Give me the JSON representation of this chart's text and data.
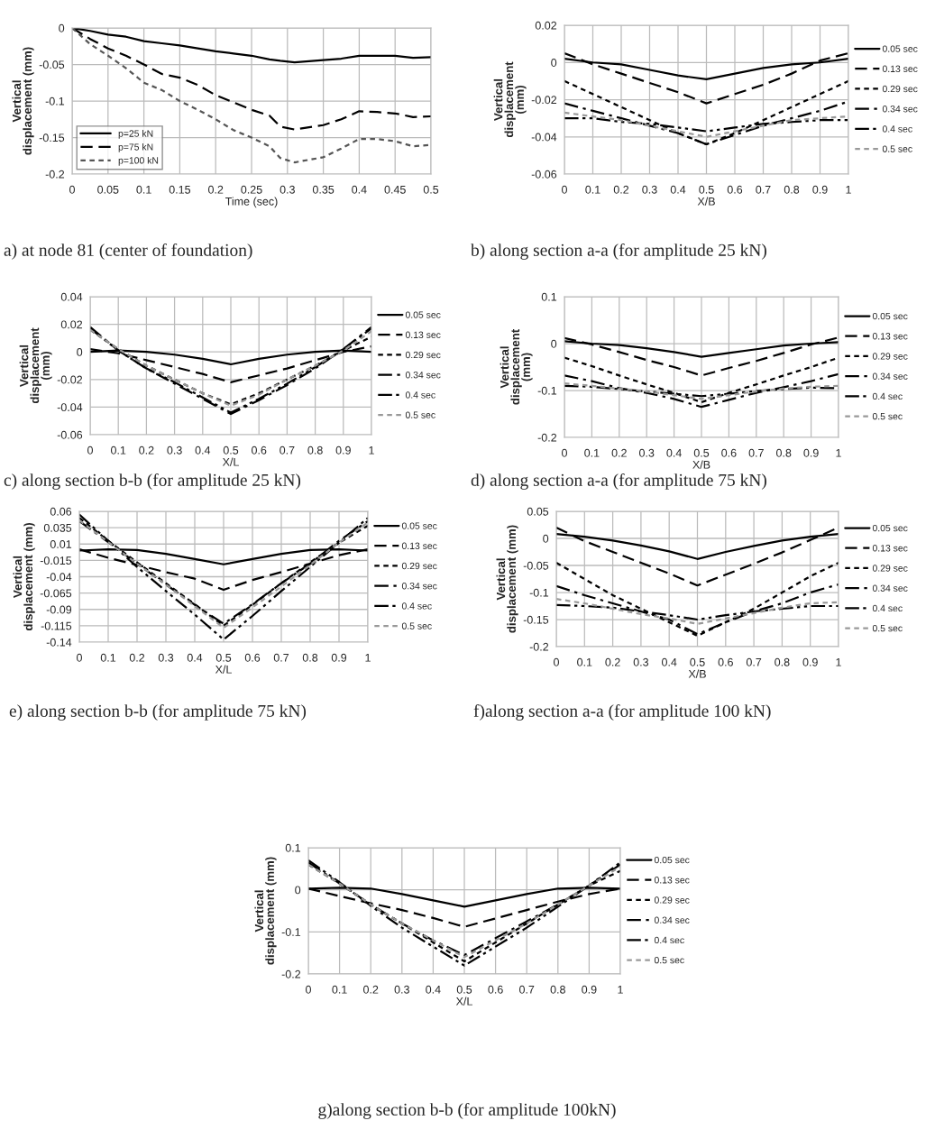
{
  "chart_data": [
    {
      "type": "line",
      "title": "a) at node 81 (center of foundation)",
      "xlabel": "Time (sec)",
      "ylabel": "Vertical\ndisplacement (mm)",
      "xlim": [
        0,
        0.5
      ],
      "xticks": [
        0,
        0.05,
        0.1,
        0.15,
        0.2,
        0.25,
        0.3,
        0.35,
        0.4,
        0.45,
        0.5
      ],
      "ylim": [
        -0.2,
        0
      ],
      "yticks": [
        0,
        -0.05,
        -0.1,
        -0.15,
        -0.2
      ],
      "grid": true,
      "legend": "bottom left",
      "x": [
        0,
        0.025,
        0.05,
        0.075,
        0.1,
        0.125,
        0.15,
        0.175,
        0.2,
        0.225,
        0.25,
        0.275,
        0.29,
        0.31,
        0.35,
        0.375,
        0.4,
        0.425,
        0.45,
        0.475,
        0.5
      ],
      "series": [
        {
          "name": "p=25 kN",
          "color": "#000000",
          "line_style": "solid",
          "values": [
            0,
            -0.004,
            -0.009,
            -0.012,
            -0.018,
            -0.021,
            -0.024,
            -0.028,
            -0.032,
            -0.035,
            -0.038,
            -0.043,
            -0.045,
            -0.047,
            -0.044,
            -0.042,
            -0.038,
            -0.038,
            -0.038,
            -0.041,
            -0.04
          ]
        },
        {
          "name": "p=75 kN",
          "color": "#000000",
          "line_style": "dashed",
          "values": [
            0,
            -0.015,
            -0.028,
            -0.038,
            -0.05,
            -0.063,
            -0.068,
            -0.078,
            -0.092,
            -0.102,
            -0.112,
            -0.12,
            -0.135,
            -0.139,
            -0.133,
            -0.125,
            -0.114,
            -0.115,
            -0.117,
            -0.122,
            -0.121
          ]
        },
        {
          "name": "p=100 kN",
          "color": "#555555",
          "line_style": "dotted",
          "values": [
            0,
            -0.022,
            -0.038,
            -0.055,
            -0.075,
            -0.085,
            -0.1,
            -0.112,
            -0.125,
            -0.14,
            -0.15,
            -0.162,
            -0.178,
            -0.184,
            -0.177,
            -0.165,
            -0.152,
            -0.152,
            -0.155,
            -0.162,
            -0.16
          ]
        }
      ]
    },
    {
      "type": "line",
      "title": "b) along section a-a (for amplitude 25 kN)",
      "xlabel": "X/B",
      "ylabel": "Vertical\ndisplacement\n(mm)",
      "xlim": [
        0,
        1
      ],
      "xticks": [
        0,
        0.1,
        0.2,
        0.3,
        0.4,
        0.5,
        0.6,
        0.7,
        0.8,
        0.9,
        1
      ],
      "ylim": [
        -0.06,
        0.02
      ],
      "yticks": [
        0.02,
        0,
        -0.02,
        -0.04,
        -0.06
      ],
      "grid": true,
      "legend": "right",
      "x": [
        0,
        0.1,
        0.2,
        0.3,
        0.4,
        0.5,
        0.6,
        0.7,
        0.8,
        0.9,
        1
      ],
      "series": [
        {
          "name": "0.05 sec",
          "color": "#000000",
          "line_style": "solid",
          "values": [
            0.002,
            0,
            -0.001,
            -0.004,
            -0.007,
            -0.009,
            -0.006,
            -0.003,
            -0.001,
            0,
            0.002
          ]
        },
        {
          "name": "0.13 sec",
          "color": "#000000",
          "line_style": "dashed",
          "values": [
            0.005,
            -0.001,
            -0.006,
            -0.011,
            -0.016,
            -0.022,
            -0.017,
            -0.012,
            -0.006,
            0.001,
            0.005
          ]
        },
        {
          "name": "0.29 sec",
          "color": "#000000",
          "line_style": "dotted",
          "values": [
            -0.01,
            -0.017,
            -0.024,
            -0.031,
            -0.038,
            -0.044,
            -0.038,
            -0.031,
            -0.024,
            -0.017,
            -0.01
          ]
        },
        {
          "name": "0.34 sec",
          "color": "#000000",
          "line_style": "dashdot",
          "values": [
            -0.022,
            -0.026,
            -0.03,
            -0.034,
            -0.038,
            -0.044,
            -0.039,
            -0.034,
            -0.03,
            -0.026,
            -0.021
          ]
        },
        {
          "name": "0.4 sec",
          "color": "#000000",
          "line_style": "dashdotdot",
          "values": [
            -0.03,
            -0.03,
            -0.032,
            -0.033,
            -0.035,
            -0.037,
            -0.035,
            -0.033,
            -0.032,
            -0.031,
            -0.031
          ]
        },
        {
          "name": "0.5 sec",
          "color": "#999999",
          "line_style": "dotted",
          "values": [
            -0.027,
            -0.029,
            -0.031,
            -0.034,
            -0.037,
            -0.04,
            -0.037,
            -0.034,
            -0.031,
            -0.03,
            -0.029
          ]
        }
      ]
    },
    {
      "type": "line",
      "title": "c) along section b-b (for amplitude 25 kN)",
      "xlabel": "X/L",
      "ylabel": "Vertical\ndisplacement\n(mm)",
      "xlim": [
        0,
        1
      ],
      "xticks": [
        0,
        0.1,
        0.2,
        0.3,
        0.4,
        0.5,
        0.6,
        0.7,
        0.8,
        0.9,
        1
      ],
      "ylim": [
        -0.06,
        0.04
      ],
      "yticks": [
        0.04,
        0.02,
        0,
        -0.02,
        -0.04,
        -0.06
      ],
      "grid": true,
      "legend": "right",
      "x": [
        0,
        0.1,
        0.2,
        0.3,
        0.4,
        0.5,
        0.6,
        0.7,
        0.8,
        0.9,
        1
      ],
      "series": [
        {
          "name": "0.05 sec",
          "color": "#000000",
          "line_style": "solid",
          "values": [
            0,
            0.001,
            0,
            -0.002,
            -0.005,
            -0.009,
            -0.005,
            -0.002,
            0,
            0.001,
            0
          ]
        },
        {
          "name": "0.13 sec",
          "color": "#000000",
          "line_style": "dashed",
          "values": [
            0.002,
            -0.001,
            -0.006,
            -0.011,
            -0.016,
            -0.022,
            -0.017,
            -0.012,
            -0.006,
            0,
            0.004
          ]
        },
        {
          "name": "0.29 sec",
          "color": "#000000",
          "line_style": "dotted",
          "values": [
            0.016,
            0.002,
            -0.01,
            -0.02,
            -0.03,
            -0.038,
            -0.03,
            -0.02,
            -0.01,
            0.001,
            0.011
          ]
        },
        {
          "name": "0.34 sec",
          "color": "#000000",
          "line_style": "dashdot",
          "values": [
            0.018,
            0.001,
            -0.012,
            -0.023,
            -0.034,
            -0.045,
            -0.035,
            -0.024,
            -0.012,
            0.002,
            0.018
          ]
        },
        {
          "name": "0.4 sec",
          "color": "#000000",
          "line_style": "dashdotdot",
          "values": [
            0.017,
            0.001,
            -0.012,
            -0.022,
            -0.033,
            -0.044,
            -0.034,
            -0.023,
            -0.011,
            0.002,
            0.017
          ]
        },
        {
          "name": "0.5 sec",
          "color": "#999999",
          "line_style": "dotted",
          "values": [
            0.016,
            0.002,
            -0.01,
            -0.02,
            -0.03,
            -0.039,
            -0.031,
            -0.02,
            -0.01,
            0.001,
            0.015
          ]
        }
      ]
    },
    {
      "type": "line",
      "title": "d) along section a-a (for amplitude 75 kN)",
      "xlabel": "X/B",
      "ylabel": "Vertical\ndisplacement\n(mm)",
      "xlim": [
        0,
        1
      ],
      "xticks": [
        0,
        0.1,
        0.2,
        0.3,
        0.4,
        0.5,
        0.6,
        0.7,
        0.8,
        0.9,
        1
      ],
      "ylim": [
        -0.2,
        0.1
      ],
      "yticks": [
        0.1,
        0,
        -0.1,
        -0.2
      ],
      "grid": true,
      "legend": "right",
      "x": [
        0,
        0.1,
        0.2,
        0.3,
        0.4,
        0.5,
        0.6,
        0.7,
        0.8,
        0.9,
        1
      ],
      "series": [
        {
          "name": "0.05 sec",
          "color": "#000000",
          "line_style": "solid",
          "values": [
            0.005,
            0,
            -0.003,
            -0.01,
            -0.018,
            -0.028,
            -0.02,
            -0.012,
            -0.004,
            0,
            0.003
          ]
        },
        {
          "name": "0.13 sec",
          "color": "#000000",
          "line_style": "dashed",
          "values": [
            0.012,
            -0.002,
            -0.018,
            -0.035,
            -0.05,
            -0.068,
            -0.052,
            -0.037,
            -0.02,
            -0.002,
            0.013
          ]
        },
        {
          "name": "0.29 sec",
          "color": "#000000",
          "line_style": "dotted",
          "values": [
            -0.03,
            -0.048,
            -0.068,
            -0.087,
            -0.105,
            -0.125,
            -0.105,
            -0.087,
            -0.068,
            -0.05,
            -0.03
          ]
        },
        {
          "name": "0.34 sec",
          "color": "#000000",
          "line_style": "dashdot",
          "values": [
            -0.068,
            -0.08,
            -0.095,
            -0.105,
            -0.118,
            -0.135,
            -0.12,
            -0.105,
            -0.093,
            -0.08,
            -0.065
          ]
        },
        {
          "name": "0.4 sec",
          "color": "#000000",
          "line_style": "dashdotdot",
          "values": [
            -0.09,
            -0.092,
            -0.097,
            -0.102,
            -0.107,
            -0.112,
            -0.107,
            -0.101,
            -0.097,
            -0.094,
            -0.095
          ]
        },
        {
          "name": "0.5 sec",
          "color": "#999999",
          "line_style": "dotted",
          "values": [
            -0.085,
            -0.09,
            -0.096,
            -0.102,
            -0.11,
            -0.118,
            -0.11,
            -0.102,
            -0.096,
            -0.092,
            -0.09
          ]
        }
      ]
    },
    {
      "type": "line",
      "title": "e) along section b-b (for amplitude 75 kN)",
      "xlabel": "X/L",
      "ylabel": "Vertical\ndisplacement (mm)",
      "xlim": [
        0,
        1
      ],
      "xticks": [
        0,
        0.1,
        0.2,
        0.3,
        0.4,
        0.5,
        0.6,
        0.7,
        0.8,
        0.9,
        1
      ],
      "ylim": [
        -0.14,
        0.06
      ],
      "yticks": [
        0.06,
        0.035,
        0.01,
        -0.015,
        -0.04,
        -0.065,
        -0.09,
        -0.115,
        -0.14
      ],
      "grid": true,
      "legend": "right",
      "x": [
        0,
        0.1,
        0.2,
        0.3,
        0.4,
        0.5,
        0.6,
        0.7,
        0.8,
        0.9,
        1
      ],
      "series": [
        {
          "name": "0.05 sec",
          "color": "#000000",
          "line_style": "solid",
          "values": [
            0,
            0.002,
            0.001,
            -0.005,
            -0.013,
            -0.021,
            -0.013,
            -0.005,
            0.001,
            0.002,
            0
          ]
        },
        {
          "name": "0.13 sec",
          "color": "#000000",
          "line_style": "dashed",
          "values": [
            0.002,
            -0.011,
            -0.022,
            -0.033,
            -0.043,
            -0.06,
            -0.045,
            -0.033,
            -0.02,
            -0.007,
            0.002
          ]
        },
        {
          "name": "0.29 sec",
          "color": "#000000",
          "line_style": "dotted",
          "values": [
            0.05,
            0.015,
            -0.018,
            -0.05,
            -0.082,
            -0.115,
            -0.083,
            -0.05,
            -0.018,
            0.012,
            0.038
          ]
        },
        {
          "name": "0.34 sec",
          "color": "#000000",
          "line_style": "dashdot",
          "values": [
            0.045,
            0.013,
            -0.02,
            -0.052,
            -0.083,
            -0.112,
            -0.082,
            -0.05,
            -0.02,
            0.015,
            0.045
          ]
        },
        {
          "name": "0.4 sec",
          "color": "#000000",
          "line_style": "dashdotdot",
          "values": [
            0.055,
            0.015,
            -0.025,
            -0.062,
            -0.098,
            -0.136,
            -0.1,
            -0.062,
            -0.025,
            0.012,
            0.05
          ]
        },
        {
          "name": "0.5 sec",
          "color": "#999999",
          "line_style": "dotted",
          "values": [
            0.046,
            0.013,
            -0.02,
            -0.052,
            -0.085,
            -0.118,
            -0.087,
            -0.055,
            -0.022,
            0.012,
            0.043
          ]
        }
      ]
    },
    {
      "type": "line",
      "title": "f)along section a-a (for amplitude 100 kN)",
      "xlabel": "X/B",
      "ylabel": "Vertical\ndisplacement (mm)",
      "xlim": [
        0,
        1
      ],
      "xticks": [
        0,
        0.1,
        0.2,
        0.3,
        0.4,
        0.5,
        0.6,
        0.7,
        0.8,
        0.9,
        1
      ],
      "ylim": [
        -0.2,
        0.05
      ],
      "yticks": [
        0.05,
        0,
        -0.05,
        -0.1,
        -0.15,
        -0.2
      ],
      "grid": true,
      "legend": "right",
      "x": [
        0,
        0.1,
        0.2,
        0.3,
        0.4,
        0.5,
        0.6,
        0.7,
        0.8,
        0.9,
        1
      ],
      "series": [
        {
          "name": "0.05 sec",
          "color": "#000000",
          "line_style": "solid",
          "values": [
            0.008,
            0.003,
            -0.004,
            -0.013,
            -0.024,
            -0.038,
            -0.025,
            -0.014,
            -0.004,
            0.003,
            0.008
          ]
        },
        {
          "name": "0.13 sec",
          "color": "#000000",
          "line_style": "dashed",
          "values": [
            0.02,
            -0.005,
            -0.025,
            -0.045,
            -0.065,
            -0.087,
            -0.067,
            -0.047,
            -0.026,
            -0.003,
            0.02
          ]
        },
        {
          "name": "0.29 sec",
          "color": "#000000",
          "line_style": "dotted",
          "values": [
            -0.045,
            -0.075,
            -0.105,
            -0.13,
            -0.155,
            -0.18,
            -0.155,
            -0.13,
            -0.1,
            -0.07,
            -0.045
          ]
        },
        {
          "name": "0.34 sec",
          "color": "#000000",
          "line_style": "dashdot",
          "values": [
            -0.088,
            -0.105,
            -0.12,
            -0.135,
            -0.15,
            -0.177,
            -0.155,
            -0.135,
            -0.12,
            -0.1,
            -0.085
          ]
        },
        {
          "name": "0.4 sec",
          "color": "#000000",
          "line_style": "dashdotdot",
          "values": [
            -0.123,
            -0.125,
            -0.128,
            -0.135,
            -0.142,
            -0.15,
            -0.142,
            -0.135,
            -0.13,
            -0.125,
            -0.125
          ]
        },
        {
          "name": "0.5 sec",
          "color": "#999999",
          "line_style": "dotted",
          "values": [
            -0.112,
            -0.12,
            -0.13,
            -0.14,
            -0.148,
            -0.158,
            -0.148,
            -0.138,
            -0.128,
            -0.12,
            -0.118
          ]
        }
      ]
    },
    {
      "type": "line",
      "title": "g)along section b-b (for amplitude 100kN)",
      "xlabel": "X/L",
      "ylabel": "Vertical\ndisplacement (mm)",
      "xlim": [
        0,
        1
      ],
      "xticks": [
        0,
        0.1,
        0.2,
        0.3,
        0.4,
        0.5,
        0.6,
        0.7,
        0.8,
        0.9,
        1
      ],
      "ylim": [
        -0.2,
        0.1
      ],
      "yticks": [
        0.1,
        0,
        -0.1,
        -0.2
      ],
      "grid": true,
      "legend": "right",
      "x": [
        0,
        0.1,
        0.2,
        0.3,
        0.4,
        0.5,
        0.6,
        0.7,
        0.8,
        0.9,
        1
      ],
      "series": [
        {
          "name": "0.05 sec",
          "color": "#000000",
          "line_style": "solid",
          "values": [
            0.003,
            0.005,
            0.003,
            -0.01,
            -0.025,
            -0.04,
            -0.025,
            -0.01,
            0.003,
            0.005,
            0.003
          ]
        },
        {
          "name": "0.13 sec",
          "color": "#000000",
          "line_style": "dashed",
          "values": [
            0.003,
            -0.015,
            -0.032,
            -0.048,
            -0.067,
            -0.088,
            -0.068,
            -0.048,
            -0.028,
            -0.01,
            0.003
          ]
        },
        {
          "name": "0.29 sec",
          "color": "#000000",
          "line_style": "dotted",
          "values": [
            0.06,
            0.015,
            -0.035,
            -0.08,
            -0.125,
            -0.17,
            -0.125,
            -0.08,
            -0.035,
            0.01,
            0.045
          ]
        },
        {
          "name": "0.34 sec",
          "color": "#000000",
          "line_style": "dashdot",
          "values": [
            0.065,
            0.015,
            -0.035,
            -0.08,
            -0.12,
            -0.155,
            -0.115,
            -0.075,
            -0.035,
            0.01,
            0.06
          ]
        },
        {
          "name": "0.4 sec",
          "color": "#000000",
          "line_style": "dashdotdot",
          "values": [
            0.07,
            0.018,
            -0.038,
            -0.09,
            -0.135,
            -0.18,
            -0.135,
            -0.09,
            -0.04,
            0.01,
            0.065
          ]
        },
        {
          "name": "0.5 sec",
          "color": "#999999",
          "line_style": "dotted",
          "values": [
            0.06,
            0.015,
            -0.035,
            -0.08,
            -0.12,
            -0.16,
            -0.12,
            -0.08,
            -0.035,
            0.01,
            0.055
          ]
        }
      ]
    }
  ]
}
